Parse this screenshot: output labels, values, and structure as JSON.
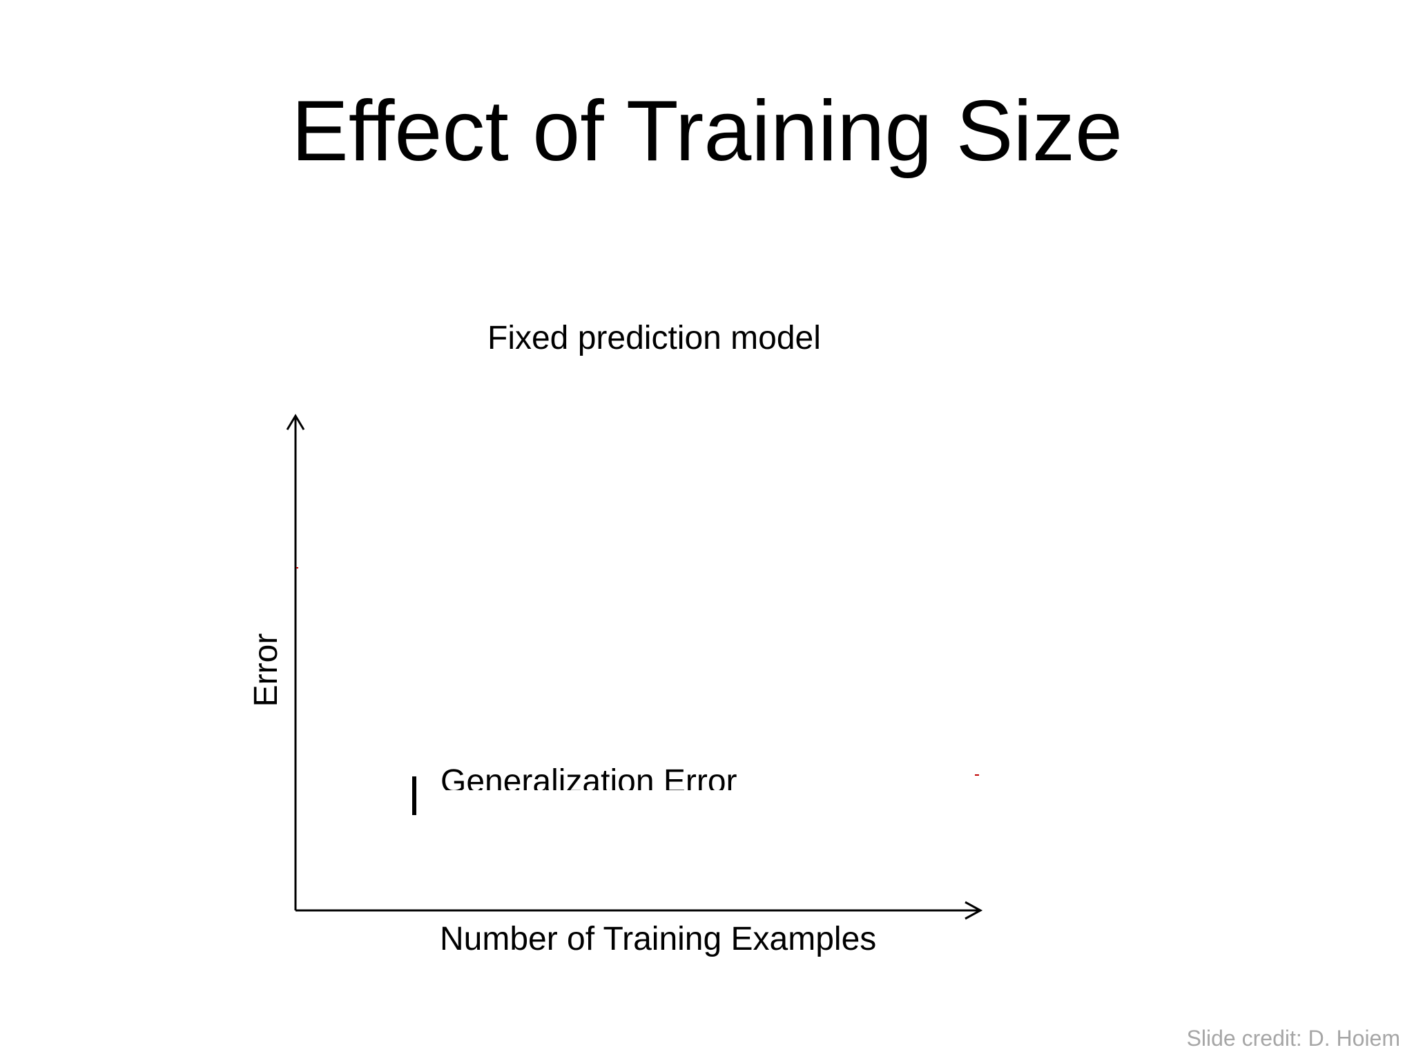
{
  "slide": {
    "title": "Effect of Training Size",
    "subtitle": "Fixed prediction model",
    "credit": "Slide credit: D. Hoiem"
  },
  "diagram": {
    "x_axis_label": "Number of Training Examples",
    "y_axis_label": "Error",
    "curve_label": "Generalization Error",
    "colors": {
      "axes": "#000000",
      "text": "#000000",
      "credit": "#a6a6a6",
      "accent_mark": "#c00000"
    }
  }
}
